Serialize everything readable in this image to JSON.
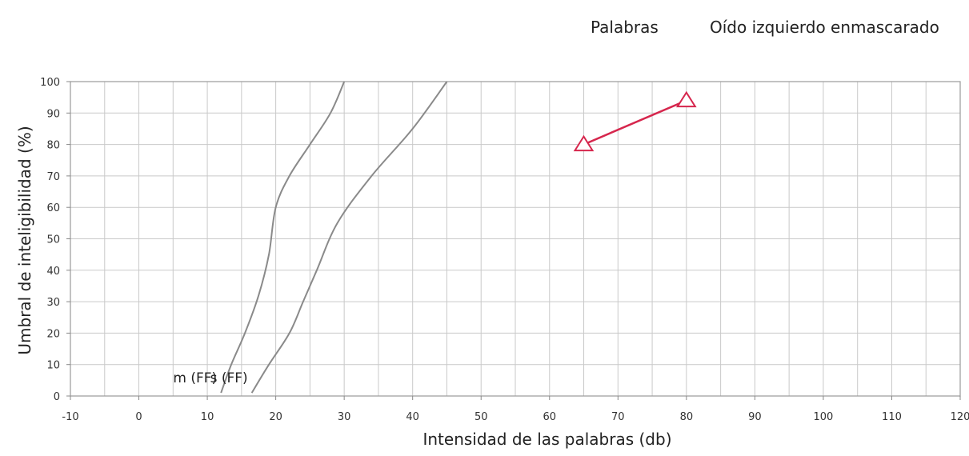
{
  "header": {
    "left_label": "Palabras",
    "right_label": "Oído izquierdo enmascarado"
  },
  "chart_data": {
    "type": "line",
    "xlabel": "Intensidad de las palabras (db)",
    "ylabel": "Umbral de inteligibilidad (%)",
    "xlim": [
      -10,
      120
    ],
    "ylim": [
      0,
      100
    ],
    "xticks": [
      -10,
      0,
      10,
      20,
      30,
      40,
      50,
      60,
      70,
      80,
      90,
      100,
      110,
      120
    ],
    "yticks": [
      0,
      10,
      20,
      30,
      40,
      50,
      60,
      70,
      80,
      90,
      100
    ],
    "x_minor_step": 5,
    "grid": true,
    "series": [
      {
        "name": "m (FF)",
        "color": "#8a8a8a",
        "marker": "none",
        "x": [
          12,
          13.5,
          15.5,
          17.5,
          19,
          20,
          22,
          25,
          28,
          30
        ],
        "y": [
          1,
          10,
          20,
          32,
          45,
          60,
          70,
          80,
          90,
          100
        ]
      },
      {
        "name": "s (FF)",
        "color": "#8a8a8a",
        "marker": "none",
        "x": [
          16.5,
          19,
          22,
          24,
          26,
          29,
          34,
          40,
          45
        ],
        "y": [
          1,
          10,
          20,
          30,
          40,
          55,
          70,
          85,
          100
        ]
      },
      {
        "name": "",
        "color": "#d6264d",
        "marker": "triangle-open",
        "x": [
          65,
          80
        ],
        "y": [
          80,
          94
        ]
      }
    ]
  }
}
